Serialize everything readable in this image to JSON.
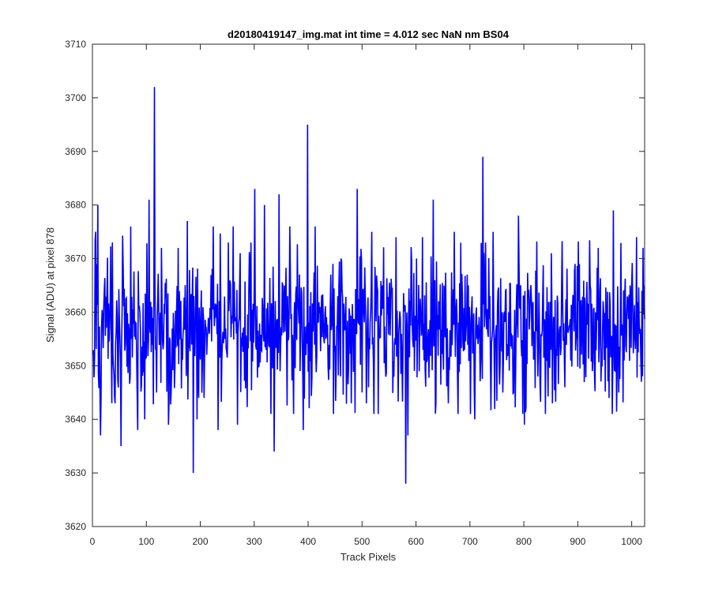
{
  "chart_data": {
    "type": "line",
    "title": "d20180419147_img.mat int time = 4.012 sec  NaN nm BS04",
    "xlabel": "Track Pixels",
    "ylabel": "Signal (ADU) at pixel 878",
    "xlim": [
      0,
      1024
    ],
    "ylim": [
      3620,
      3710
    ],
    "xticks": [
      0,
      100,
      200,
      300,
      400,
      500,
      600,
      700,
      800,
      900,
      1000
    ],
    "yticks": [
      3620,
      3630,
      3640,
      3650,
      3660,
      3670,
      3680,
      3690,
      3700,
      3710
    ],
    "grid": false,
    "legend": "none",
    "series": [
      {
        "color": "#0000ff",
        "noise": {
          "length": 1024,
          "baseline": 3657,
          "spread": 6.5,
          "min": 3641,
          "max": 3676
        },
        "spikes": [
          {
            "x": 5,
            "y": 3675
          },
          {
            "x": 9,
            "y": 3680
          },
          {
            "x": 14,
            "y": 3637
          },
          {
            "x": 36,
            "y": 3673
          },
          {
            "x": 41,
            "y": 3643
          },
          {
            "x": 52,
            "y": 3635
          },
          {
            "x": 70,
            "y": 3676
          },
          {
            "x": 83,
            "y": 3638
          },
          {
            "x": 96,
            "y": 3640
          },
          {
            "x": 104,
            "y": 3681
          },
          {
            "x": 114,
            "y": 3702
          },
          {
            "x": 118,
            "y": 3645
          },
          {
            "x": 127,
            "y": 3672
          },
          {
            "x": 140,
            "y": 3639
          },
          {
            "x": 158,
            "y": 3672
          },
          {
            "x": 175,
            "y": 3677
          },
          {
            "x": 186,
            "y": 3630
          },
          {
            "x": 193,
            "y": 3640
          },
          {
            "x": 223,
            "y": 3676
          },
          {
            "x": 232,
            "y": 3638
          },
          {
            "x": 260,
            "y": 3676
          },
          {
            "x": 268,
            "y": 3639
          },
          {
            "x": 300,
            "y": 3683
          },
          {
            "x": 318,
            "y": 3680
          },
          {
            "x": 330,
            "y": 3641
          },
          {
            "x": 336,
            "y": 3634
          },
          {
            "x": 345,
            "y": 3682
          },
          {
            "x": 365,
            "y": 3676
          },
          {
            "x": 372,
            "y": 3641
          },
          {
            "x": 390,
            "y": 3638
          },
          {
            "x": 398,
            "y": 3695
          },
          {
            "x": 412,
            "y": 3676
          },
          {
            "x": 441,
            "y": 3667
          },
          {
            "x": 460,
            "y": 3670
          },
          {
            "x": 479,
            "y": 3643
          },
          {
            "x": 490,
            "y": 3683
          },
          {
            "x": 507,
            "y": 3643
          },
          {
            "x": 517,
            "y": 3675
          },
          {
            "x": 521,
            "y": 3641
          },
          {
            "x": 536,
            "y": 3665
          },
          {
            "x": 562,
            "y": 3674
          },
          {
            "x": 580,
            "y": 3628
          },
          {
            "x": 584,
            "y": 3637
          },
          {
            "x": 600,
            "y": 3670
          },
          {
            "x": 611,
            "y": 3674
          },
          {
            "x": 631,
            "y": 3681
          },
          {
            "x": 659,
            "y": 3643
          },
          {
            "x": 670,
            "y": 3675
          },
          {
            "x": 694,
            "y": 3667
          },
          {
            "x": 708,
            "y": 3640
          },
          {
            "x": 723,
            "y": 3689
          },
          {
            "x": 742,
            "y": 3675
          },
          {
            "x": 760,
            "y": 3645
          },
          {
            "x": 789,
            "y": 3678
          },
          {
            "x": 800,
            "y": 3639
          },
          {
            "x": 825,
            "y": 3648
          },
          {
            "x": 850,
            "y": 3671
          },
          {
            "x": 875,
            "y": 3646
          },
          {
            "x": 894,
            "y": 3669
          },
          {
            "x": 926,
            "y": 3649
          },
          {
            "x": 937,
            "y": 3672
          },
          {
            "x": 965,
            "y": 3679
          },
          {
            "x": 975,
            "y": 3645
          },
          {
            "x": 1008,
            "y": 3674
          },
          {
            "x": 1020,
            "y": 3672
          }
        ]
      }
    ]
  }
}
